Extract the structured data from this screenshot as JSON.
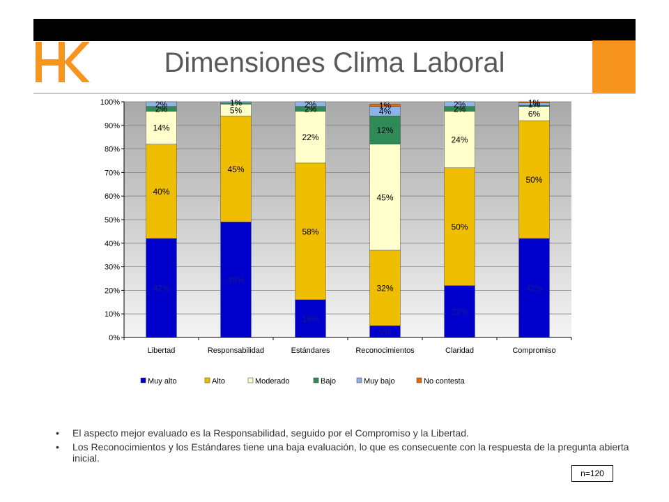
{
  "header": {
    "title": "Dimensiones Clima Laboral",
    "logo_text": "HK",
    "colors": {
      "bar": "#000000",
      "accent": "#f7941d"
    }
  },
  "chart_data": {
    "type": "bar",
    "stacked": true,
    "categories": [
      "Libertad",
      "Responsabilidad",
      "Estándares",
      "Reconocimientos",
      "Claridad",
      "Compromiso"
    ],
    "series": [
      {
        "name": "Muy alto",
        "color": "#0000cc",
        "values": [
          42,
          49,
          16,
          5,
          22,
          42
        ],
        "labels": [
          "42%",
          "49%",
          "16%",
          "5%",
          "22%",
          "42%"
        ]
      },
      {
        "name": "Alto",
        "color": "#f0be00",
        "values": [
          40,
          45,
          58,
          32,
          50,
          50
        ],
        "labels": [
          "40%",
          "45%",
          "58%",
          "32%",
          "50%",
          "50%"
        ]
      },
      {
        "name": "Moderado",
        "color": "#ffffcc",
        "values": [
          14,
          5,
          22,
          45,
          24,
          6
        ],
        "labels": [
          "14%",
          "5%",
          "22%",
          "45%",
          "24%",
          "6%"
        ]
      },
      {
        "name": "Bajo",
        "color": "#2e8b57",
        "values": [
          2,
          0.5,
          2,
          12,
          2,
          0.5
        ],
        "labels": [
          "2%",
          "",
          "2%",
          "12%",
          "2%",
          ""
        ]
      },
      {
        "name": "Muy bajo",
        "color": "#8db3e2",
        "values": [
          2,
          1,
          2,
          4,
          2,
          1
        ],
        "labels": [
          "2%",
          "1%",
          "2%",
          "4%",
          "2%",
          "1%"
        ]
      },
      {
        "name": "No contesta",
        "color": "#e46c0a",
        "values": [
          0,
          0,
          0,
          1,
          0,
          1
        ],
        "labels": [
          "",
          "",
          "",
          "1%",
          "",
          "1%"
        ]
      }
    ],
    "ylim": [
      0,
      100
    ],
    "yticks": [
      0,
      10,
      20,
      30,
      40,
      50,
      60,
      70,
      80,
      90,
      100
    ],
    "ytick_labels": [
      "0%",
      "10%",
      "20%",
      "30%",
      "40%",
      "50%",
      "60%",
      "70%",
      "80%",
      "90%",
      "100%"
    ],
    "grid": true,
    "legend_position": "bottom"
  },
  "notes": [
    "El aspecto mejor evaluado es la Responsabilidad, seguido por el Compromiso y la Libertad.",
    "Los Reconocimientos y los Estándares tiene una baja evaluación, lo  que es consecuente con la respuesta de la pregunta abierta inicial."
  ],
  "sample_label": "n=120"
}
